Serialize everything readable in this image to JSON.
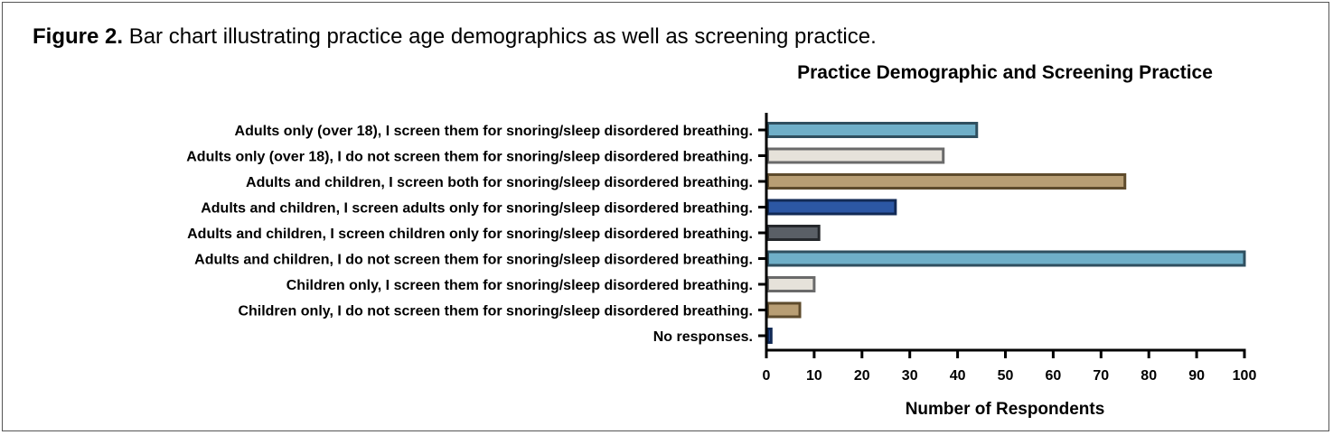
{
  "figure": {
    "label": "Figure 2.",
    "caption": " Bar chart illustrating practice age demographics as well as screening practice."
  },
  "chart_data": {
    "type": "bar",
    "orientation": "horizontal",
    "title": "Practice Demographic and Screening Practice",
    "xlabel": "Number of Respondents",
    "ylabel": "",
    "xlim": [
      0,
      100
    ],
    "xticks": [
      0,
      10,
      20,
      30,
      40,
      50,
      60,
      70,
      80,
      90,
      100
    ],
    "grid": false,
    "categories": [
      "Adults only (over 18), I screen them for snoring/sleep disordered breathing.",
      "Adults only (over 18), I do not screen them for snoring/sleep disordered breathing.",
      "Adults and children, I screen both for snoring/sleep disordered breathing.",
      "Adults and children, I screen adults only for snoring/sleep disordered breathing.",
      "Adults and children, I screen children only for snoring/sleep disordered breathing.",
      "Adults and children, I do not screen them for snoring/sleep disordered breathing.",
      "Children only, I screen them for snoring/sleep disordered breathing.",
      "Children only, I do not screen them for snoring/sleep disordered breathing.",
      "No responses."
    ],
    "values": [
      44,
      37,
      75,
      27,
      11,
      100,
      10,
      7,
      1
    ],
    "colors": [
      {
        "fill": "#6fafc8",
        "stroke": "#2f4f5f"
      },
      {
        "fill": "#e6e2da",
        "stroke": "#6a6a6a"
      },
      {
        "fill": "#b89e74",
        "stroke": "#5e4b2c"
      },
      {
        "fill": "#2c57a4",
        "stroke": "#122a55"
      },
      {
        "fill": "#5a5f66",
        "stroke": "#25282c"
      },
      {
        "fill": "#6fafc8",
        "stroke": "#2f4f5f"
      },
      {
        "fill": "#e6e2da",
        "stroke": "#6a6a6a"
      },
      {
        "fill": "#b89e74",
        "stroke": "#5e4b2c"
      },
      {
        "fill": "#2c57a4",
        "stroke": "#122a55"
      }
    ]
  }
}
